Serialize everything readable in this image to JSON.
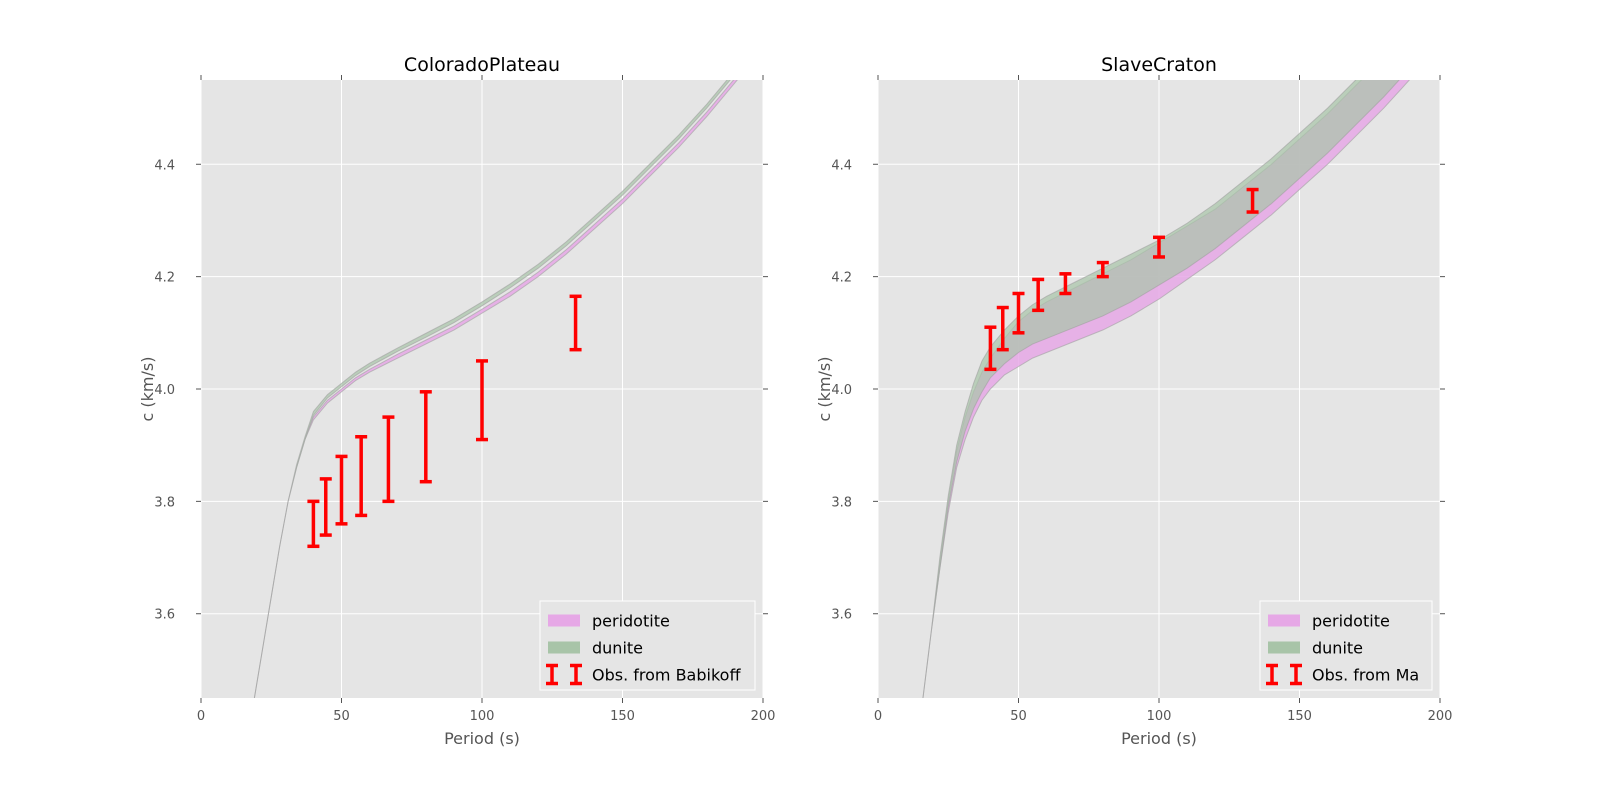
{
  "figure": {
    "background": "#ffffff"
  },
  "chart_data": [
    {
      "type": "line",
      "title": "ColoradoPlateau",
      "xlabel": "Period (s)",
      "ylabel": "c (km/s)",
      "xlim": [
        0,
        200
      ],
      "ylim": [
        3.45,
        4.55
      ],
      "x_ticks": [
        "0",
        "50",
        "100",
        "150",
        "200"
      ],
      "y_ticks": [
        "3.6",
        "3.8",
        "4.0",
        "4.2",
        "4.4"
      ],
      "grid": true,
      "legend_position": "lower-right",
      "legend": [
        {
          "label": "peridotite",
          "kind": "band",
          "color": "#e6a8e6"
        },
        {
          "label": "dunite",
          "kind": "band",
          "color": "#a8c4a8"
        },
        {
          "label": "Obs. from Babikoff",
          "kind": "errorbar",
          "color": "#ff0000"
        }
      ],
      "series": [
        {
          "name": "peridotite",
          "kind": "band",
          "color": "#e6a8e6",
          "x": [
            19,
            22,
            25,
            28,
            31,
            34,
            37,
            40,
            45,
            50,
            55,
            60,
            70,
            80,
            90,
            100,
            110,
            120,
            130,
            140,
            150,
            160,
            170,
            180,
            190,
            195
          ],
          "lower": [
            3.45,
            3.54,
            3.63,
            3.72,
            3.8,
            3.86,
            3.91,
            3.945,
            3.975,
            3.995,
            4.015,
            4.03,
            4.055,
            4.08,
            4.105,
            4.135,
            4.165,
            4.2,
            4.24,
            4.285,
            4.33,
            4.38,
            4.43,
            4.485,
            4.545,
            4.575
          ],
          "upper": [
            3.45,
            3.54,
            3.63,
            3.72,
            3.8,
            3.86,
            3.91,
            3.95,
            3.98,
            4.0,
            4.02,
            4.035,
            4.062,
            4.087,
            4.112,
            4.142,
            4.173,
            4.208,
            4.248,
            4.293,
            4.338,
            4.388,
            4.438,
            4.493,
            4.553,
            4.583
          ]
        },
        {
          "name": "dunite",
          "kind": "band",
          "color": "#a8c4a8",
          "x": [
            19,
            22,
            25,
            28,
            31,
            34,
            37,
            40,
            45,
            50,
            55,
            60,
            70,
            80,
            90,
            100,
            110,
            120,
            130,
            140,
            150,
            160,
            170,
            180,
            190,
            195
          ],
          "lower": [
            3.45,
            3.54,
            3.63,
            3.72,
            3.8,
            3.86,
            3.91,
            3.953,
            3.984,
            4.004,
            4.024,
            4.04,
            4.067,
            4.092,
            4.118,
            4.148,
            4.18,
            4.215,
            4.255,
            4.3,
            4.345,
            4.395,
            4.445,
            4.5,
            4.56,
            4.59
          ],
          "upper": [
            3.45,
            3.54,
            3.63,
            3.72,
            3.8,
            3.865,
            3.915,
            3.96,
            3.99,
            4.01,
            4.03,
            4.046,
            4.073,
            4.099,
            4.125,
            4.155,
            4.187,
            4.222,
            4.262,
            4.307,
            4.352,
            4.402,
            4.452,
            4.507,
            4.567,
            4.597
          ]
        },
        {
          "name": "Obs. from Babikoff",
          "kind": "errorbar",
          "color": "#ff0000",
          "points": [
            {
              "x": 40,
              "low": 3.72,
              "high": 3.8
            },
            {
              "x": 44.4,
              "low": 3.74,
              "high": 3.84
            },
            {
              "x": 50,
              "low": 3.76,
              "high": 3.88
            },
            {
              "x": 57,
              "low": 3.775,
              "high": 3.915
            },
            {
              "x": 66.7,
              "low": 3.8,
              "high": 3.95
            },
            {
              "x": 80,
              "low": 3.835,
              "high": 3.995
            },
            {
              "x": 100,
              "low": 3.91,
              "high": 4.05
            },
            {
              "x": 133.3,
              "low": 4.07,
              "high": 4.165
            }
          ]
        }
      ]
    },
    {
      "type": "line",
      "title": "SlaveCraton",
      "xlabel": "Period (s)",
      "ylabel": "c (km/s)",
      "xlim": [
        0,
        200
      ],
      "ylim": [
        3.45,
        4.55
      ],
      "x_ticks": [
        "0",
        "50",
        "100",
        "150",
        "200"
      ],
      "y_ticks": [
        "3.6",
        "3.8",
        "4.0",
        "4.2",
        "4.4"
      ],
      "grid": true,
      "legend_position": "lower-right",
      "legend": [
        {
          "label": "peridotite",
          "kind": "band",
          "color": "#e6a8e6"
        },
        {
          "label": "dunite",
          "kind": "band",
          "color": "#a8c4a8"
        },
        {
          "label": "Obs. from Ma",
          "kind": "errorbar",
          "color": "#ff0000"
        }
      ],
      "series": [
        {
          "name": "peridotite",
          "kind": "band",
          "color": "#e6a8e6",
          "x": [
            16,
            19,
            22,
            25,
            28,
            31,
            34,
            37,
            40,
            45,
            50,
            55,
            60,
            70,
            80,
            90,
            100,
            110,
            120,
            130,
            140,
            150,
            160,
            170,
            180,
            190
          ],
          "lower": [
            3.45,
            3.57,
            3.68,
            3.78,
            3.86,
            3.91,
            3.95,
            3.98,
            4.0,
            4.025,
            4.04,
            4.055,
            4.065,
            4.085,
            4.105,
            4.13,
            4.16,
            4.195,
            4.23,
            4.27,
            4.31,
            4.355,
            4.4,
            4.45,
            4.5,
            4.555
          ],
          "upper": [
            3.45,
            3.57,
            3.69,
            3.8,
            3.89,
            3.95,
            3.995,
            4.03,
            4.055,
            4.09,
            4.12,
            4.14,
            4.155,
            4.18,
            4.205,
            4.23,
            4.26,
            4.29,
            4.32,
            4.36,
            4.4,
            4.445,
            4.49,
            4.54,
            4.59,
            4.64
          ]
        },
        {
          "name": "dunite",
          "kind": "band",
          "color": "#a8c4a8",
          "x": [
            16,
            19,
            22,
            25,
            28,
            31,
            34,
            37,
            40,
            45,
            50,
            55,
            60,
            70,
            80,
            90,
            100,
            110,
            120,
            130,
            140,
            150,
            160,
            170,
            180,
            190
          ],
          "lower": [
            3.45,
            3.57,
            3.68,
            3.79,
            3.87,
            3.925,
            3.965,
            3.995,
            4.02,
            4.045,
            4.065,
            4.08,
            4.09,
            4.11,
            4.13,
            4.155,
            4.185,
            4.215,
            4.25,
            4.29,
            4.33,
            4.375,
            4.42,
            4.47,
            4.52,
            4.575
          ],
          "upper": [
            3.45,
            3.57,
            3.7,
            3.81,
            3.9,
            3.96,
            4.01,
            4.05,
            4.075,
            4.105,
            4.13,
            4.15,
            4.165,
            4.19,
            4.215,
            4.24,
            4.265,
            4.295,
            4.33,
            4.37,
            4.41,
            4.455,
            4.5,
            4.55,
            4.6,
            4.65
          ]
        },
        {
          "name": "Obs. from Ma",
          "kind": "errorbar",
          "color": "#ff0000",
          "points": [
            {
              "x": 40,
              "low": 4.035,
              "high": 4.11
            },
            {
              "x": 44.4,
              "low": 4.07,
              "high": 4.145
            },
            {
              "x": 50,
              "low": 4.1,
              "high": 4.17
            },
            {
              "x": 57,
              "low": 4.14,
              "high": 4.195
            },
            {
              "x": 66.7,
              "low": 4.17,
              "high": 4.205
            },
            {
              "x": 80,
              "low": 4.2,
              "high": 4.225
            },
            {
              "x": 100,
              "low": 4.235,
              "high": 4.27
            },
            {
              "x": 133.3,
              "low": 4.315,
              "high": 4.355
            }
          ]
        }
      ]
    }
  ]
}
